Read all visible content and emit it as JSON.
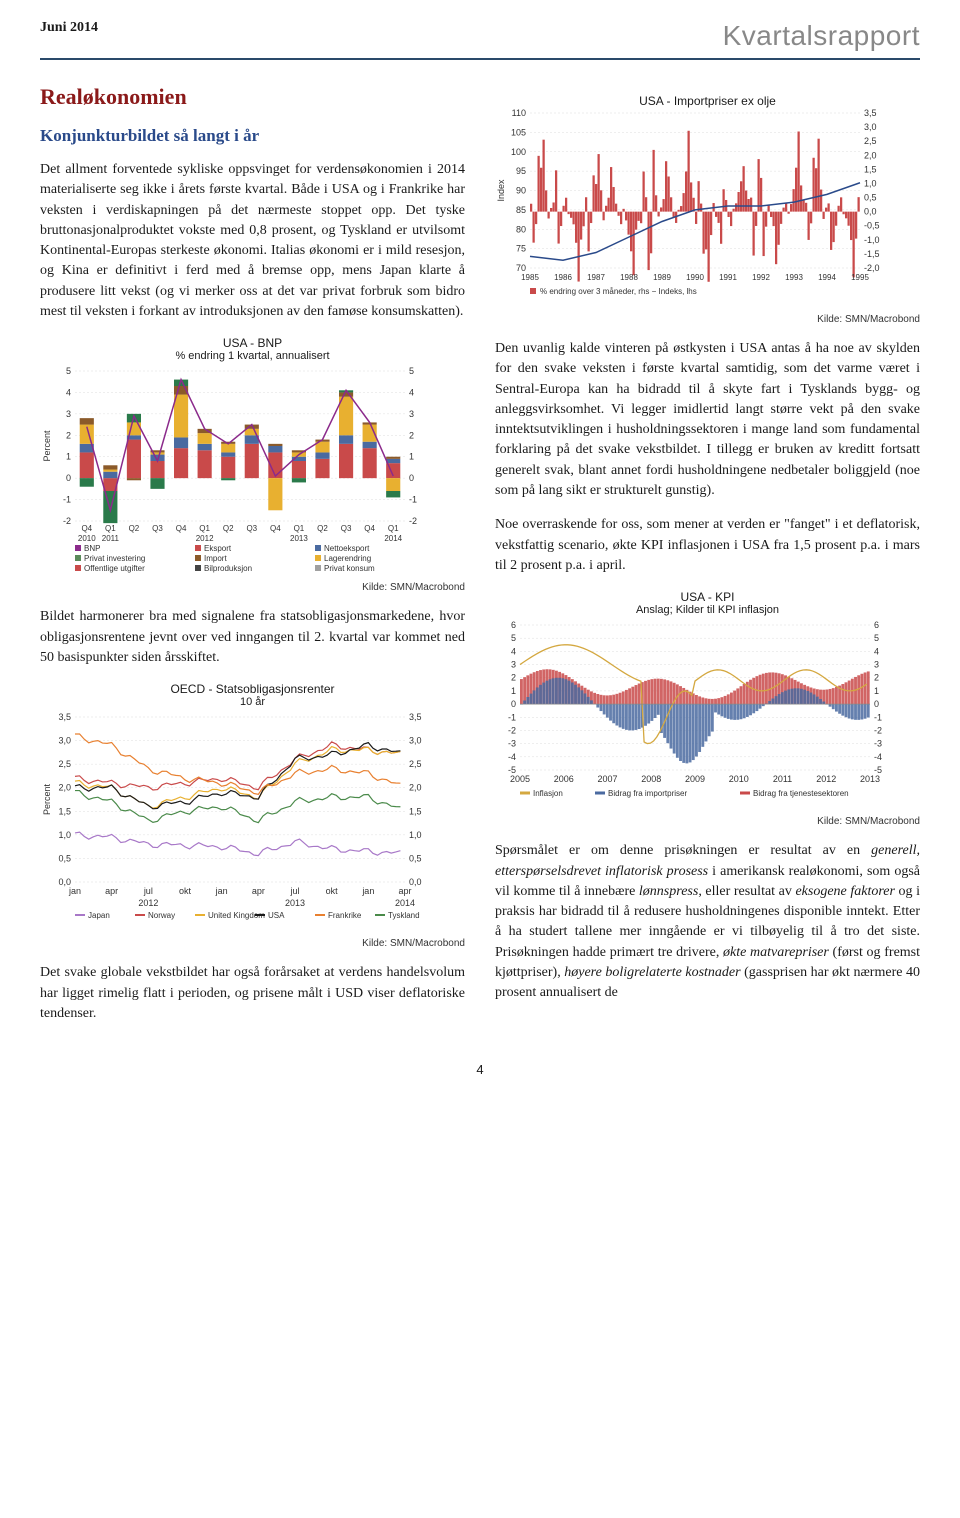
{
  "header": {
    "left": "Juni 2014",
    "right": "Kvartalsrapport"
  },
  "section_title": "Realøkonomien",
  "subsection_title": "Konjunkturbildet så langt i år",
  "left_col": {
    "p1": "Det allment forventede sykliske oppsvinget for verdensøkonomien i 2014 materialiserte seg ikke i årets første kvartal. Både i USA og i Frankrike har veksten i verdiskapningen på det nærmeste stoppet opp. Det tyske bruttonasjonalproduktet vokste med 0,8 prosent, og Tyskland er utvilsomt Kontinental-Europas sterkeste økonomi. Italias økonomi er i mild resesjon, og Kina er definitivt i ferd med å bremse opp, mens Japan klarte å produsere litt vekst (og vi merker oss at det var privat forbruk som bidro mest til veksten i forkant av introduksjonen av den famøse konsumskatten).",
    "p2": "Bildet harmonerer bra med signalene fra statsobligasjonsmarkedene, hvor obligasjonsrentene jevnt over ved inngangen til 2. kvartal var kommet ned 50 basispunkter siden årsskiftet.",
    "p3": "Det svake globale vekstbildet har også forårsaket at verdens handelsvolum har ligget rimelig flatt i perioden, og prisene målt i USD viser deflatoriske tendenser."
  },
  "right_col": {
    "p1": "Den uvanlig kalde vinteren på østkysten i USA antas å ha noe av skylden for den svake veksten i første kvartal samtidig, som det varme været i Sentral-Europa kan ha bidradd til å skyte fart i Tysklands bygg- og anleggsvirksomhet. Vi legger imidlertid langt større vekt på den svake inntektsutviklingen i husholdningssektoren i mange land som fundamental forklaring på det svake vekstbildet. I tillegg er bruken av kreditt fortsatt generelt svak, blant annet fordi husholdningene nedbetaler boliggjeld (noe som på lang sikt er strukturelt gunstig).",
    "p2": "Noe overraskende for oss, som mener at verden er \"fanget\" i et deflatorisk, vekstfattig scenario, økte KPI inflasjonen i USA fra 1,5 prosent p.a. i mars til 2 prosent p.a. i april.",
    "p3_html": "Spørsmålet er om denne prisøkningen er resultat av en <em>generell, etterspørselsdrevet inflatorisk prosess</em> i amerikansk realøkonomi, som også vil komme til å innebære <em>lønnspress</em>, eller resultat av <em>eksogene faktorer</em> og i praksis har bidradd til å redusere husholdningenes disponible inntekt. Etter å ha studert tallene mer inngående er vi tilbøyelig til å tro det siste. Prisøkningen hadde primært tre drivere, <em>økte matvarepriser</em> (først og fremst kjøttpriser), <em>høyere boligrelaterte kostnader</em> (gassprisen har økt nærmere 40 prosent annualisert de"
  },
  "charts": {
    "bnp": {
      "title": "USA - BNP",
      "subtitle": "% endring 1 kvartal, annualisert",
      "ylim": [
        -2,
        5
      ],
      "yticks": [
        -2,
        -1,
        0,
        1,
        2,
        3,
        4,
        5
      ],
      "xticks": [
        "Q4",
        "Q1",
        "Q2",
        "Q3",
        "Q4",
        "Q1",
        "Q2",
        "Q3",
        "Q4",
        "Q1",
        "Q2",
        "Q3",
        "Q4",
        "Q1"
      ],
      "xyears_pos": [
        0,
        1,
        5,
        9,
        13
      ],
      "xyears_label": [
        "2010",
        "2011",
        "2012",
        "2013",
        "2014"
      ],
      "line_bnp": [
        2.4,
        -1.5,
        2.9,
        0.8,
        4.6,
        2.3,
        1.6,
        2.5,
        0.1,
        1.1,
        1.8,
        4.1,
        2.6,
        0.1
      ],
      "line_color": "#8b2a8b",
      "bar_series": [
        {
          "color": "#c94a4a",
          "vals": [
            1.2,
            -0.6,
            1.8,
            0.8,
            1.4,
            1.3,
            1.0,
            1.6,
            1.2,
            0.8,
            0.9,
            1.6,
            1.4,
            0.7
          ]
        },
        {
          "color": "#4a6aa0",
          "vals": [
            0.4,
            0.3,
            0.2,
            0.3,
            0.5,
            0.3,
            0.2,
            0.4,
            0.3,
            0.2,
            0.3,
            0.4,
            0.3,
            0.2
          ]
        },
        {
          "color": "#e8b030",
          "vals": [
            0.9,
            0.1,
            0.6,
            0.1,
            2.0,
            0.5,
            0.4,
            0.3,
            -1.5,
            0.2,
            0.5,
            1.8,
            0.8,
            -0.6
          ]
        },
        {
          "color": "#8b5a2a",
          "vals": [
            0.3,
            0.2,
            -0.1,
            0.1,
            0.4,
            0.2,
            0.1,
            0.2,
            0.1,
            0.1,
            0.1,
            0.2,
            0.1,
            0.1
          ]
        },
        {
          "color": "#2a7a4a",
          "vals": [
            -0.4,
            -1.5,
            0.4,
            -0.5,
            0.3,
            0.0,
            -0.1,
            0.0,
            0.0,
            -0.2,
            0.0,
            0.1,
            0.0,
            -0.3
          ]
        }
      ],
      "legend": [
        {
          "color": "#8b2a8b",
          "label": "BNP"
        },
        {
          "color": "#c94a4a",
          "label": "Eksport"
        },
        {
          "color": "#4a6aa0",
          "label": "Nettoeksport"
        },
        {
          "color": "#5a8a5a",
          "label": "Privat investering"
        },
        {
          "color": "#8b5a2a",
          "label": "Import"
        },
        {
          "color": "#e8b030",
          "label": "Lagerendring"
        },
        {
          "color": "#c94a4a",
          "label": "Offentlige utgifter"
        },
        {
          "color": "#444",
          "label": "Bilproduksjon"
        },
        {
          "color": "#a0a0a0",
          "label": "Privat konsum"
        }
      ],
      "source": "Kilde: SMN/Macrobond"
    },
    "oecd": {
      "title": "OECD - Statsobligasjonsrenter",
      "subtitle": "10 år",
      "ylim": [
        0.0,
        3.5
      ],
      "yticks": [
        "0,0",
        "0,5",
        "1,0",
        "1,5",
        "2,0",
        "2,5",
        "3,0",
        "3,5"
      ],
      "xticks": [
        "jan",
        "apr",
        "jul",
        "okt",
        "jan",
        "apr",
        "jul",
        "okt",
        "jan",
        "apr"
      ],
      "xyears": [
        "2012",
        "2013",
        "2014"
      ],
      "series": [
        {
          "color": "#a878c8",
          "label": "Japan",
          "vals": [
            1.0,
            0.95,
            0.8,
            0.78,
            0.75,
            0.6,
            0.85,
            0.7,
            0.65,
            0.6
          ]
        },
        {
          "color": "#c94a4a",
          "label": "Norway",
          "vals": [
            2.2,
            2.1,
            2.0,
            2.1,
            2.2,
            2.0,
            2.6,
            2.9,
            2.8,
            2.7
          ]
        },
        {
          "color": "#e8b030",
          "label": "United Kingdom",
          "vals": [
            2.1,
            2.0,
            1.6,
            1.8,
            2.0,
            1.8,
            2.5,
            2.8,
            2.8,
            2.7
          ]
        },
        {
          "color": "#1a1a1a",
          "label": "USA",
          "vals": [
            2.0,
            2.0,
            1.6,
            1.7,
            1.9,
            1.8,
            2.6,
            2.7,
            2.9,
            2.7
          ]
        },
        {
          "color": "#e88030",
          "label": "Frankrike",
          "vals": [
            3.1,
            2.9,
            2.4,
            2.2,
            2.1,
            1.9,
            2.3,
            2.4,
            2.3,
            2.0
          ]
        },
        {
          "color": "#4a8a4a",
          "label": "Tyskland",
          "vals": [
            1.9,
            1.7,
            1.3,
            1.5,
            1.6,
            1.3,
            1.7,
            1.8,
            1.8,
            1.5
          ]
        }
      ],
      "source": "Kilde: SMN/Macrobond"
    },
    "import": {
      "title": "USA - Importpriser ex olje",
      "ylabel": "Index",
      "y1lim": [
        70,
        110
      ],
      "y1ticks": [
        70,
        75,
        80,
        85,
        90,
        95,
        100,
        105,
        110
      ],
      "y2lim": [
        -2.0,
        3.5
      ],
      "y2ticks": [
        "-2,0",
        "-1,5",
        "-1,0",
        "-0,5",
        "0,0",
        "0,5",
        "1,0",
        "1,5",
        "2,0",
        "2,5",
        "3,0",
        "3,5"
      ],
      "xticks": [
        "1985",
        "1986",
        "1987",
        "1988",
        "1989",
        "1990",
        "1991",
        "1992",
        "1993",
        "1994",
        "1995"
      ],
      "bar_color": "#c94a4a",
      "line_color": "#2a4a8a",
      "index_line": [
        73,
        72,
        74,
        78,
        82,
        85,
        86,
        86,
        87,
        89,
        92
      ],
      "bars": [
        0.5,
        -1.5,
        -0.5,
        2.0,
        1.5,
        2.5,
        0.8,
        -0.3,
        0.2,
        0.5,
        1.8,
        1.2,
        0.5,
        -0.2,
        -0.5,
        0.1,
        0.3,
        0.8,
        1.5,
        2.8,
        1.0,
        0.5
      ],
      "legend": "% endring over 3 måneder, rhs − Indeks, lhs",
      "source": "Kilde: SMN/Macrobond"
    },
    "kpi": {
      "title": "USA - KPI",
      "subtitle": "Anslag; Kilder til KPI inflasjon",
      "ylim": [
        -5,
        6
      ],
      "yticks": [
        -5,
        -4,
        -3,
        -2,
        -1,
        0,
        1,
        2,
        3,
        4,
        5,
        6
      ],
      "xticks": [
        "2005",
        "2006",
        "2007",
        "2008",
        "2009",
        "2010",
        "2011",
        "2012",
        "2013"
      ],
      "series": [
        {
          "color": "#d4a840",
          "label": "Inflasjon"
        },
        {
          "color": "#4a6aa0",
          "label": "Bidrag fra importpriser"
        },
        {
          "color": "#c94a4a",
          "label": "Bidrag fra tjenestesektoren"
        }
      ],
      "source": "Kilde: SMN/Macrobond"
    }
  },
  "page_number": "4"
}
